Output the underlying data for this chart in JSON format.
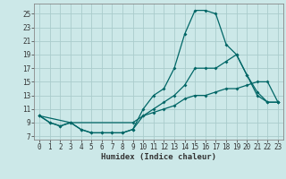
{
  "xlabel": "Humidex (Indice chaleur)",
  "bg_color": "#cce8e8",
  "grid_color": "#aacccc",
  "line_color": "#006666",
  "xlim": [
    -0.5,
    23.5
  ],
  "ylim": [
    6.5,
    26.5
  ],
  "yticks": [
    7,
    9,
    11,
    13,
    15,
    17,
    19,
    21,
    23,
    25
  ],
  "xticks": [
    0,
    1,
    2,
    3,
    4,
    5,
    6,
    7,
    8,
    9,
    10,
    11,
    12,
    13,
    14,
    15,
    16,
    17,
    18,
    19,
    20,
    21,
    22,
    23
  ],
  "line1_x": [
    0,
    1,
    2,
    3,
    4,
    5,
    6,
    7,
    8,
    9,
    10,
    11,
    12,
    13,
    14,
    15,
    16,
    17,
    18,
    19,
    20,
    21,
    22,
    23
  ],
  "line1_y": [
    10,
    9,
    8.5,
    9,
    8,
    7.5,
    7.5,
    7.5,
    7.5,
    8,
    11,
    13,
    14,
    17,
    22,
    25.5,
    25.5,
    25,
    20.5,
    19,
    16,
    13,
    12,
    12
  ],
  "line2_x": [
    0,
    1,
    2,
    3,
    4,
    5,
    6,
    7,
    8,
    9,
    10,
    11,
    12,
    13,
    14,
    15,
    16,
    17,
    18,
    19,
    20,
    21,
    22,
    23
  ],
  "line2_y": [
    10,
    9,
    8.5,
    9,
    8,
    7.5,
    7.5,
    7.5,
    7.5,
    8,
    10,
    11,
    12,
    13,
    14.5,
    17,
    17,
    17,
    18,
    19,
    16,
    13.5,
    12,
    12
  ],
  "line3_x": [
    0,
    3,
    9,
    10,
    11,
    12,
    13,
    14,
    15,
    16,
    17,
    18,
    19,
    20,
    21,
    22,
    23
  ],
  "line3_y": [
    10,
    9,
    9,
    10,
    10.5,
    11,
    11.5,
    12.5,
    13,
    13,
    13.5,
    14,
    14,
    14.5,
    15,
    15,
    12
  ],
  "tick_fontsize": 5.5,
  "xlabel_fontsize": 6.5,
  "marker_size": 2.0,
  "linewidth": 0.9
}
